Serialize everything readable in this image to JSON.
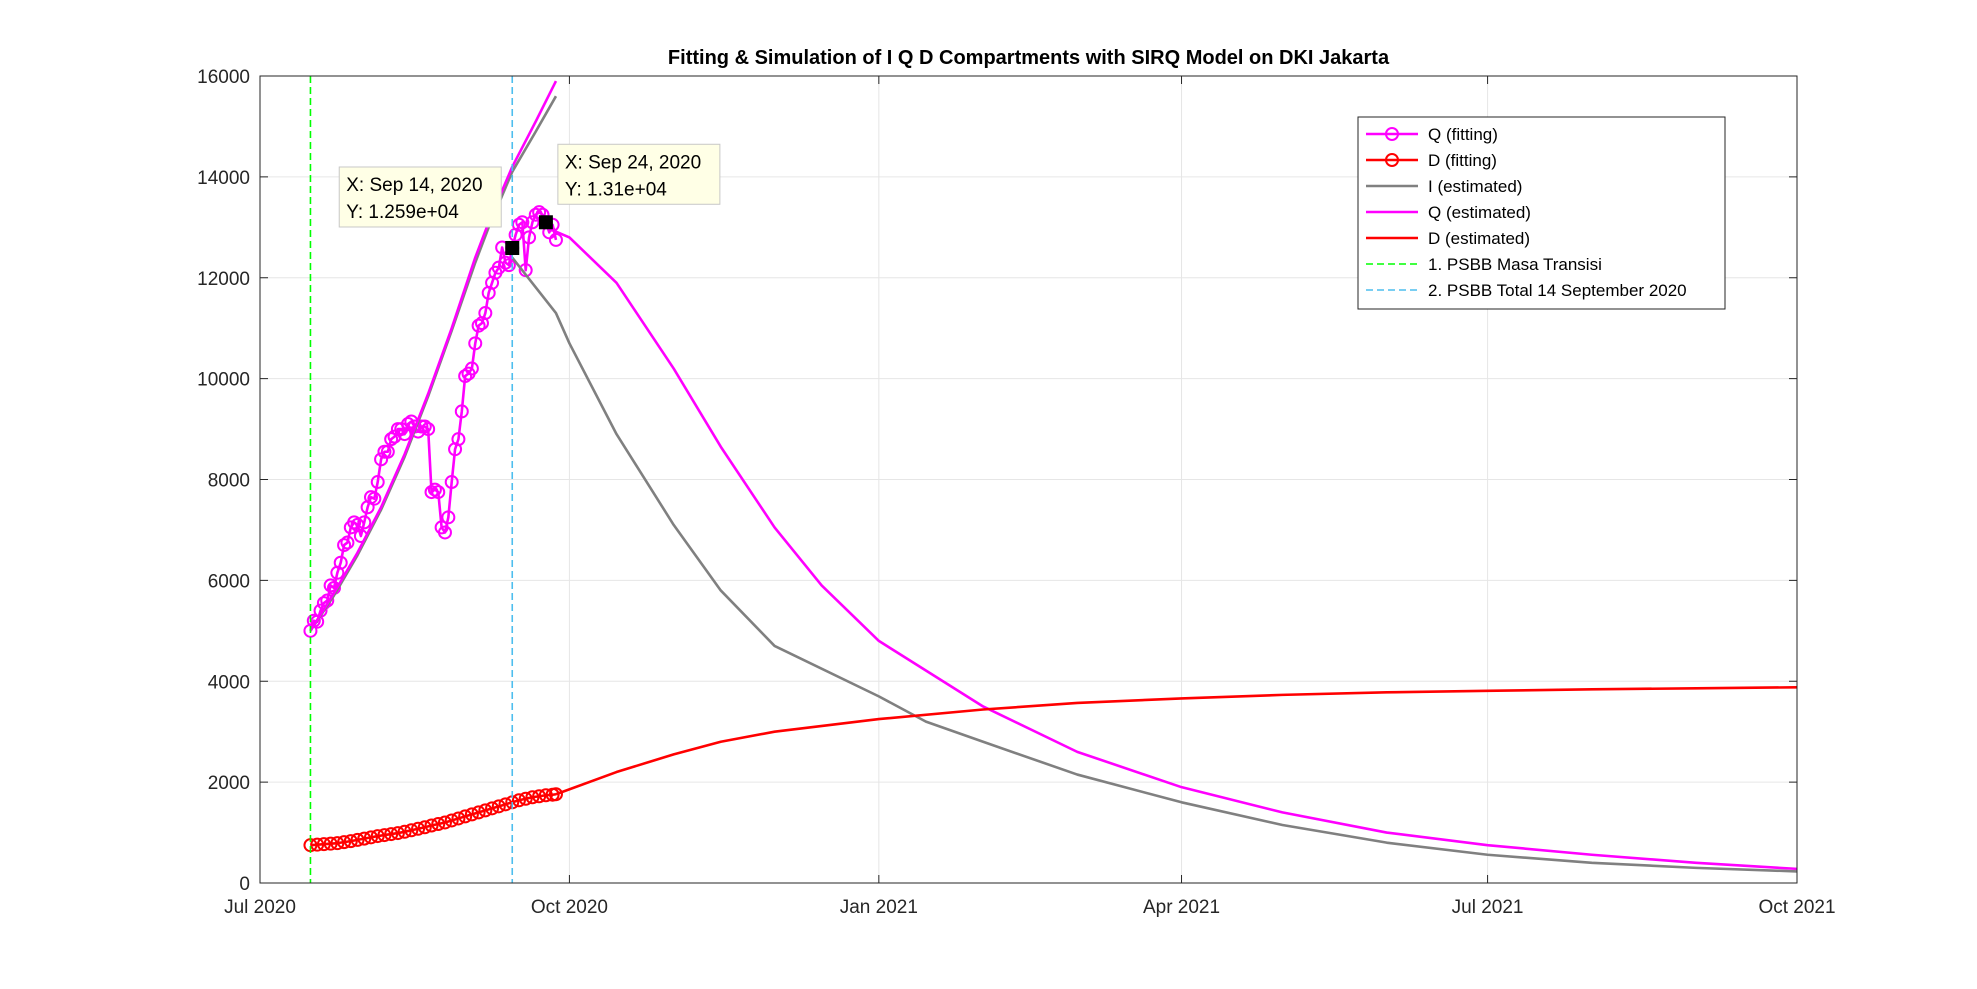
{
  "chart_data": {
    "type": "line",
    "title": "Fitting & Simulation of  I Q D Compartments with SIRQ Model on DKI Jakarta",
    "xlabel": "",
    "ylabel": "",
    "x_axis": {
      "type": "date",
      "range": [
        "2020-07-01",
        "2021-10-01"
      ],
      "ticks": [
        {
          "date": "2020-07-01",
          "label": "Jul 2020"
        },
        {
          "date": "2020-10-01",
          "label": "Oct 2020"
        },
        {
          "date": "2021-01-01",
          "label": "Jan 2021"
        },
        {
          "date": "2021-04-01",
          "label": "Apr 2021"
        },
        {
          "date": "2021-07-01",
          "label": "Jul 2021"
        },
        {
          "date": "2021-10-01",
          "label": "Oct 2021"
        }
      ]
    },
    "y_axis": {
      "range": [
        0,
        16000
      ],
      "ticks": [
        0,
        2000,
        4000,
        6000,
        8000,
        10000,
        12000,
        14000,
        16000
      ]
    },
    "grid": true,
    "legend_position": "top-right",
    "series": [
      {
        "name": "Q (fitting)",
        "color": "#ff00ff",
        "style": "line-circle",
        "points": [
          [
            "2020-07-16",
            5000
          ],
          [
            "2020-07-17",
            5200
          ],
          [
            "2020-07-18",
            5180
          ],
          [
            "2020-07-19",
            5400
          ],
          [
            "2020-07-20",
            5550
          ],
          [
            "2020-07-21",
            5600
          ],
          [
            "2020-07-22",
            5900
          ],
          [
            "2020-07-23",
            5850
          ],
          [
            "2020-07-24",
            6150
          ],
          [
            "2020-07-25",
            6350
          ],
          [
            "2020-07-26",
            6700
          ],
          [
            "2020-07-27",
            6750
          ],
          [
            "2020-07-28",
            7050
          ],
          [
            "2020-07-29",
            7150
          ],
          [
            "2020-07-30",
            7100
          ],
          [
            "2020-07-31",
            6880
          ],
          [
            "2020-08-01",
            7150
          ],
          [
            "2020-08-02",
            7450
          ],
          [
            "2020-08-03",
            7650
          ],
          [
            "2020-08-04",
            7620
          ],
          [
            "2020-08-05",
            7950
          ],
          [
            "2020-08-06",
            8400
          ],
          [
            "2020-08-07",
            8550
          ],
          [
            "2020-08-08",
            8550
          ],
          [
            "2020-08-09",
            8800
          ],
          [
            "2020-08-10",
            8850
          ],
          [
            "2020-08-11",
            9000
          ],
          [
            "2020-08-12",
            9000
          ],
          [
            "2020-08-13",
            8900
          ],
          [
            "2020-08-14",
            9100
          ],
          [
            "2020-08-15",
            9150
          ],
          [
            "2020-08-16",
            9050
          ],
          [
            "2020-08-17",
            8950
          ],
          [
            "2020-08-18",
            9050
          ],
          [
            "2020-08-19",
            9050
          ],
          [
            "2020-08-20",
            9000
          ],
          [
            "2020-08-21",
            7750
          ],
          [
            "2020-08-22",
            7800
          ],
          [
            "2020-08-23",
            7750
          ],
          [
            "2020-08-24",
            7050
          ],
          [
            "2020-08-25",
            6950
          ],
          [
            "2020-08-26",
            7250
          ],
          [
            "2020-08-27",
            7950
          ],
          [
            "2020-08-28",
            8600
          ],
          [
            "2020-08-29",
            8800
          ],
          [
            "2020-08-30",
            9350
          ],
          [
            "2020-08-31",
            10050
          ],
          [
            "2020-09-01",
            10100
          ],
          [
            "2020-09-02",
            10200
          ],
          [
            "2020-09-03",
            10700
          ],
          [
            "2020-09-04",
            11050
          ],
          [
            "2020-09-05",
            11100
          ],
          [
            "2020-09-06",
            11300
          ],
          [
            "2020-09-07",
            11700
          ],
          [
            "2020-09-08",
            11900
          ],
          [
            "2020-09-09",
            12100
          ],
          [
            "2020-09-10",
            12200
          ],
          [
            "2020-09-11",
            12600
          ],
          [
            "2020-09-12",
            12300
          ],
          [
            "2020-09-13",
            12250
          ],
          [
            "2020-09-14",
            12590
          ],
          [
            "2020-09-15",
            12850
          ],
          [
            "2020-09-16",
            13050
          ],
          [
            "2020-09-17",
            13100
          ],
          [
            "2020-09-18",
            12150
          ],
          [
            "2020-09-19",
            12800
          ],
          [
            "2020-09-20",
            13100
          ],
          [
            "2020-09-21",
            13250
          ],
          [
            "2020-09-22",
            13300
          ],
          [
            "2020-09-23",
            13250
          ],
          [
            "2020-09-24",
            13100
          ],
          [
            "2020-09-25",
            12900
          ],
          [
            "2020-09-26",
            13050
          ],
          [
            "2020-09-27",
            12750
          ]
        ]
      },
      {
        "name": "D (fitting)",
        "color": "#ff0000",
        "style": "line-circle",
        "points": [
          [
            "2020-07-16",
            750
          ],
          [
            "2020-07-18",
            760
          ],
          [
            "2020-07-20",
            770
          ],
          [
            "2020-07-22",
            780
          ],
          [
            "2020-07-24",
            790
          ],
          [
            "2020-07-26",
            810
          ],
          [
            "2020-07-28",
            830
          ],
          [
            "2020-07-30",
            855
          ],
          [
            "2020-08-01",
            880
          ],
          [
            "2020-08-03",
            905
          ],
          [
            "2020-08-05",
            930
          ],
          [
            "2020-08-07",
            950
          ],
          [
            "2020-08-09",
            970
          ],
          [
            "2020-08-11",
            990
          ],
          [
            "2020-08-13",
            1015
          ],
          [
            "2020-08-15",
            1045
          ],
          [
            "2020-08-17",
            1075
          ],
          [
            "2020-08-19",
            1105
          ],
          [
            "2020-08-21",
            1140
          ],
          [
            "2020-08-23",
            1170
          ],
          [
            "2020-08-25",
            1200
          ],
          [
            "2020-08-27",
            1240
          ],
          [
            "2020-08-29",
            1280
          ],
          [
            "2020-08-31",
            1320
          ],
          [
            "2020-09-02",
            1360
          ],
          [
            "2020-09-04",
            1400
          ],
          [
            "2020-09-06",
            1440
          ],
          [
            "2020-09-08",
            1480
          ],
          [
            "2020-09-10",
            1520
          ],
          [
            "2020-09-12",
            1560
          ],
          [
            "2020-09-14",
            1600
          ],
          [
            "2020-09-16",
            1640
          ],
          [
            "2020-09-18",
            1670
          ],
          [
            "2020-09-20",
            1700
          ],
          [
            "2020-09-22",
            1720
          ],
          [
            "2020-09-24",
            1740
          ],
          [
            "2020-09-26",
            1750
          ],
          [
            "2020-09-27",
            1760
          ]
        ]
      },
      {
        "name": "I (estimated)",
        "color": "#808080",
        "style": "line",
        "points": [
          [
            "2020-07-16",
            5000
          ],
          [
            "2020-07-23",
            5700
          ],
          [
            "2020-07-30",
            6500
          ],
          [
            "2020-08-06",
            7400
          ],
          [
            "2020-08-13",
            8450
          ],
          [
            "2020-08-20",
            9650
          ],
          [
            "2020-08-27",
            10950
          ],
          [
            "2020-09-03",
            12300
          ],
          [
            "2020-09-07",
            13000
          ],
          [
            "2020-09-14",
            14100
          ],
          [
            "2020-09-21",
            14900
          ],
          [
            "2020-09-27",
            15600
          ]
        ]
      },
      {
        "name": "Q (estimated)",
        "color": "#ff00ff",
        "style": "line",
        "points": [
          [
            "2020-07-16",
            5000
          ],
          [
            "2020-07-23",
            5750
          ],
          [
            "2020-07-30",
            6550
          ],
          [
            "2020-08-06",
            7450
          ],
          [
            "2020-08-13",
            8500
          ],
          [
            "2020-08-20",
            9700
          ],
          [
            "2020-08-27",
            11000
          ],
          [
            "2020-09-03",
            12400
          ],
          [
            "2020-09-07",
            13100
          ],
          [
            "2020-09-14",
            14200
          ],
          [
            "2020-09-21",
            15100
          ],
          [
            "2020-09-27",
            15900
          ]
        ]
      },
      {
        "name": "",
        "color": "#808080",
        "style": "line",
        "points": [
          [
            "2020-09-14",
            12400
          ],
          [
            "2020-09-27",
            11300
          ],
          [
            "2020-10-01",
            10700
          ],
          [
            "2020-10-15",
            8900
          ],
          [
            "2020-11-01",
            7100
          ],
          [
            "2020-11-15",
            5800
          ],
          [
            "2020-12-01",
            4700
          ],
          [
            "2021-01-01",
            3700
          ],
          [
            "2021-01-15",
            3200
          ],
          [
            "2021-02-01",
            2800
          ],
          [
            "2021-03-01",
            2150
          ],
          [
            "2021-04-01",
            1600
          ],
          [
            "2021-05-01",
            1150
          ],
          [
            "2021-06-01",
            800
          ],
          [
            "2021-07-01",
            560
          ],
          [
            "2021-08-01",
            400
          ],
          [
            "2021-09-01",
            300
          ],
          [
            "2021-10-01",
            230
          ]
        ]
      },
      {
        "name": "",
        "color": "#ff00ff",
        "style": "line",
        "points": [
          [
            "2020-09-24",
            13000
          ],
          [
            "2020-10-01",
            12800
          ],
          [
            "2020-10-15",
            11900
          ],
          [
            "2020-11-01",
            10200
          ],
          [
            "2020-11-15",
            8650
          ],
          [
            "2020-12-01",
            7050
          ],
          [
            "2020-12-15",
            5900
          ],
          [
            "2021-01-01",
            4800
          ],
          [
            "2021-02-01",
            3500
          ],
          [
            "2021-03-01",
            2600
          ],
          [
            "2021-04-01",
            1900
          ],
          [
            "2021-05-01",
            1400
          ],
          [
            "2021-06-01",
            1000
          ],
          [
            "2021-07-01",
            750
          ],
          [
            "2021-08-01",
            560
          ],
          [
            "2021-09-01",
            400
          ],
          [
            "2021-10-01",
            280
          ]
        ]
      },
      {
        "name": "D (estimated)",
        "color": "#ff0000",
        "style": "line",
        "points": [
          [
            "2020-09-27",
            1760
          ],
          [
            "2020-10-15",
            2200
          ],
          [
            "2020-11-01",
            2550
          ],
          [
            "2020-11-15",
            2800
          ],
          [
            "2020-12-01",
            3000
          ],
          [
            "2021-01-01",
            3250
          ],
          [
            "2021-02-01",
            3440
          ],
          [
            "2021-03-01",
            3570
          ],
          [
            "2021-04-01",
            3660
          ],
          [
            "2021-05-01",
            3730
          ],
          [
            "2021-06-01",
            3780
          ],
          [
            "2021-07-01",
            3810
          ],
          [
            "2021-08-01",
            3840
          ],
          [
            "2021-09-01",
            3860
          ],
          [
            "2021-10-01",
            3880
          ]
        ]
      },
      {
        "name": "1. PSBB Masa Transisi",
        "color": "#00ff00",
        "style": "vline-dashed",
        "x": "2020-07-16"
      },
      {
        "name": "2. PSBB Total 14 September 2020",
        "color": "#4dbeee",
        "style": "vline-dashed",
        "x": "2020-09-14"
      }
    ],
    "annotations": [
      {
        "type": "datatip",
        "x": "2020-09-14",
        "y": 12590,
        "lines": [
          "X: Sep 14, 2020",
          "Y: 1.259e+04"
        ]
      },
      {
        "type": "datatip",
        "x": "2020-09-24",
        "y": 13100,
        "lines": [
          "X: Sep 24, 2020",
          "Y: 1.31e+04"
        ]
      }
    ]
  }
}
